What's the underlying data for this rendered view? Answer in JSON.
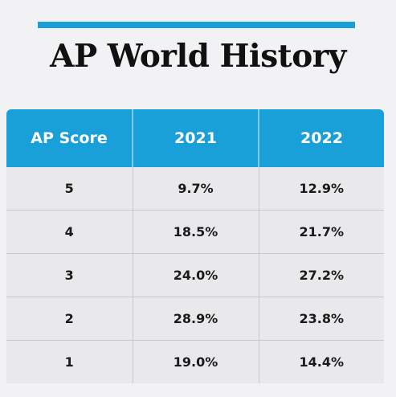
{
  "accent_color": "#1aa0d8",
  "title": "AP World History",
  "chart_data": {
    "type": "table",
    "title": "AP World History",
    "columns": [
      "AP Score",
      "2021",
      "2022"
    ],
    "rows": [
      [
        "5",
        "9.7%",
        "12.9%"
      ],
      [
        "4",
        "18.5%",
        "21.7%"
      ],
      [
        "3",
        "24.0%",
        "27.2%"
      ],
      [
        "2",
        "28.9%",
        "23.8%"
      ],
      [
        "1",
        "19.0%",
        "14.4%"
      ]
    ]
  }
}
